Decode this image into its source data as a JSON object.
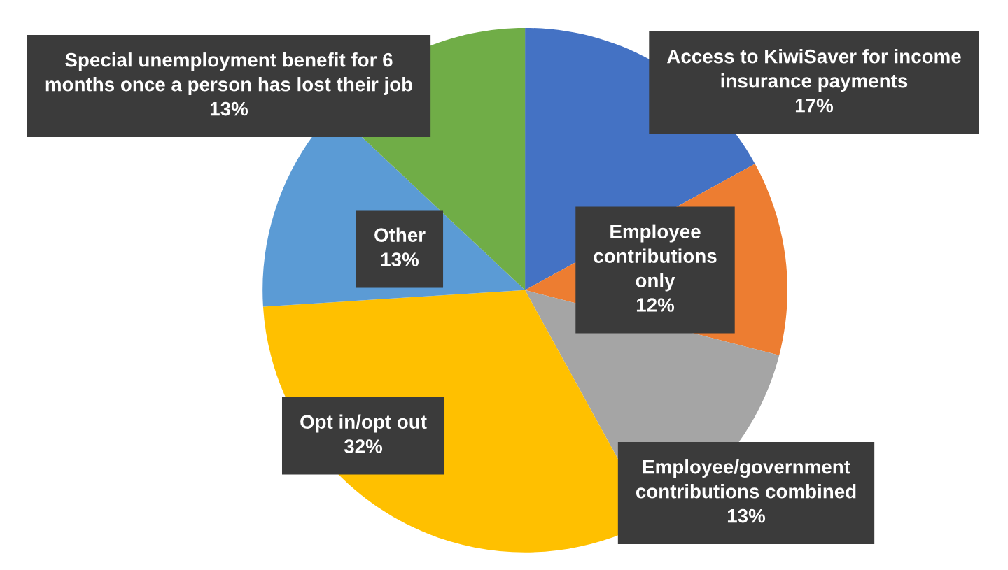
{
  "chart_data": {
    "type": "pie",
    "categories": [
      "Access to KiwiSaver for income\ninsurance payments",
      "Employee\ncontributions\nonly",
      "Employee/government\ncontributions combined",
      "Opt in/opt out",
      "Other",
      "Special unemployment benefit for 6\nmonths once a person has lost their job"
    ],
    "values": [
      17,
      12,
      13,
      32,
      13,
      13
    ],
    "value_labels": [
      "17%",
      "12%",
      "13%",
      "32%",
      "13%",
      "13%"
    ],
    "colors": [
      "#4472c4",
      "#ed7d31",
      "#a5a5a5",
      "#ffc000",
      "#5b9bd5",
      "#70ad47"
    ],
    "legend": false
  }
}
